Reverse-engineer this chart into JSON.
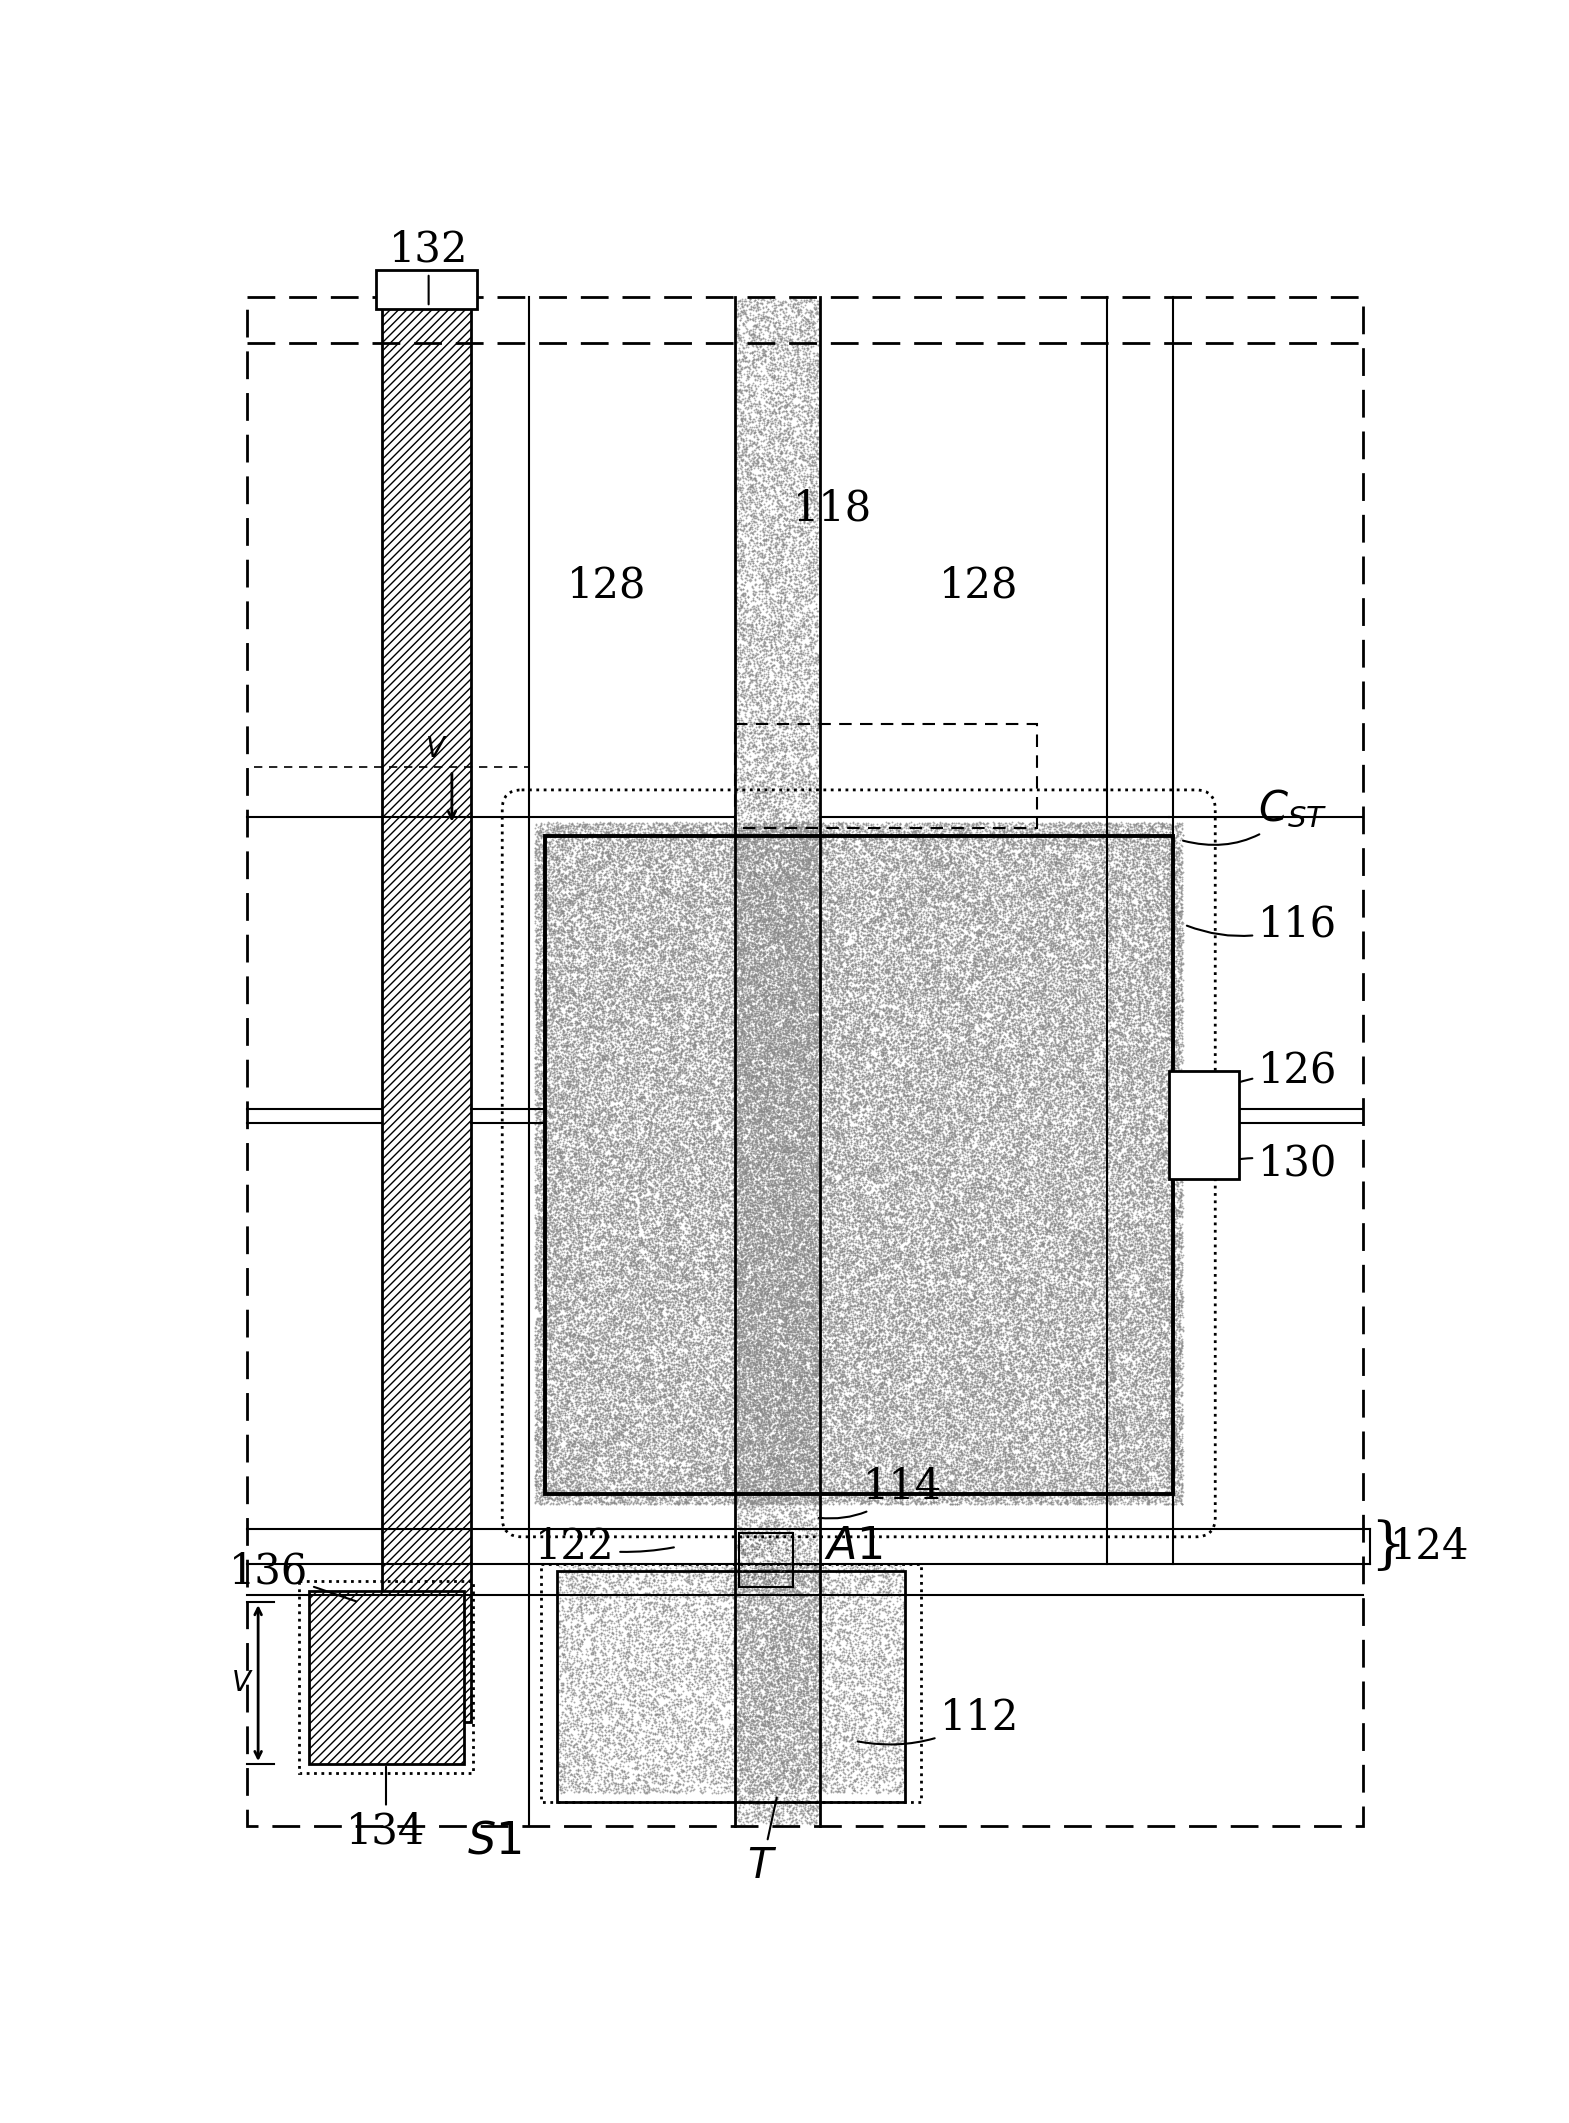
{
  "fig_width": 15.69,
  "fig_height": 21.23,
  "bg_color": "#ffffff",
  "lw_main": 2.0,
  "lw_thick": 2.8,
  "lw_thin": 1.5,
  "stipple_dark": "#888888",
  "stipple_light": "#aaaaaa"
}
